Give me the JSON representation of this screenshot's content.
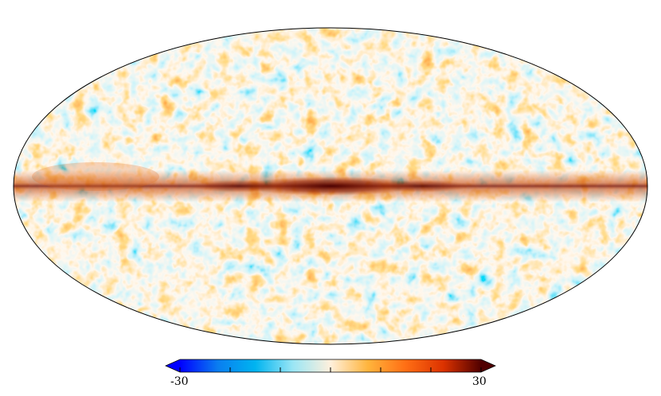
{
  "projection": "mollweide",
  "colormap": {
    "stops": [
      "#0000ff",
      "#0a7df0",
      "#00b4f0",
      "#9ae6f5",
      "#fff0dc",
      "#ffb43c",
      "#ff6e14",
      "#dc3200",
      "#500000"
    ],
    "min_label": "-30",
    "max_label": "30",
    "min_value": -30,
    "max_value": 30,
    "extend": "both"
  },
  "colors": {
    "outline": "#000000",
    "background": "#ffffff",
    "galactic_plane": "#6e0a00"
  }
}
